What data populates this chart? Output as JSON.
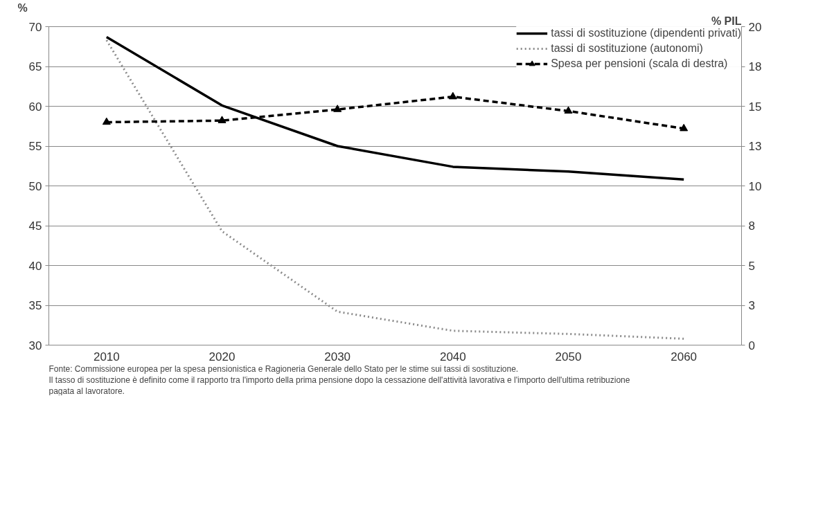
{
  "chart_data": {
    "type": "line",
    "ylabel": "%",
    "y2label": "% PIL",
    "categories": [
      "2010",
      "2020",
      "2030",
      "2040",
      "2050",
      "2060"
    ],
    "ylim": [
      30,
      70
    ],
    "yticks": [
      30,
      35,
      40,
      45,
      50,
      55,
      60,
      65,
      70
    ],
    "y2lim": [
      0,
      20
    ],
    "y2ticks": [
      0,
      {
        "value": 2.5,
        "label": "3"
      },
      5,
      {
        "value": 7.5,
        "label": "8"
      },
      10,
      {
        "value": 12.5,
        "label": "13"
      },
      15,
      {
        "value": 17.5,
        "label": "18"
      },
      20
    ],
    "grid": "y",
    "legend": "top right",
    "marker": "none",
    "series": [
      {
        "name": "tassi di sostituzione (dipendenti privati)",
        "color": "#000000",
        "line_style": "solid",
        "values": [
          68.7,
          60.1,
          55.0,
          52.4,
          51.8,
          50.8
        ]
      },
      {
        "name": "tassi di sostituzione (autonomi)",
        "color": "#8c8c8c",
        "line_style": "dotted",
        "values": [
          68.3,
          44.3,
          34.2,
          31.8,
          31.4,
          30.8
        ]
      },
      {
        "name": "Spesa per pensioni (scala di destra)",
        "color": "#000000",
        "line_style": "dashed",
        "marker": "triangle",
        "axis": "y2",
        "values": [
          14.0,
          14.1,
          14.8,
          15.6,
          14.7,
          13.6
        ]
      }
    ],
    "annotations": [
      "Fonte: Commissione europea per la spesa pensionistica e  Ragioneria Generale dello Stato  per le stime sui tassi di sostituzione.",
      "Il tasso di sostituzione è definito come il rapporto tra l'importo della prima pensione dopo la cessazione dell'attività lavorativa e  l'importo dell'ultima retribuzione pagata al lavoratore."
    ]
  }
}
